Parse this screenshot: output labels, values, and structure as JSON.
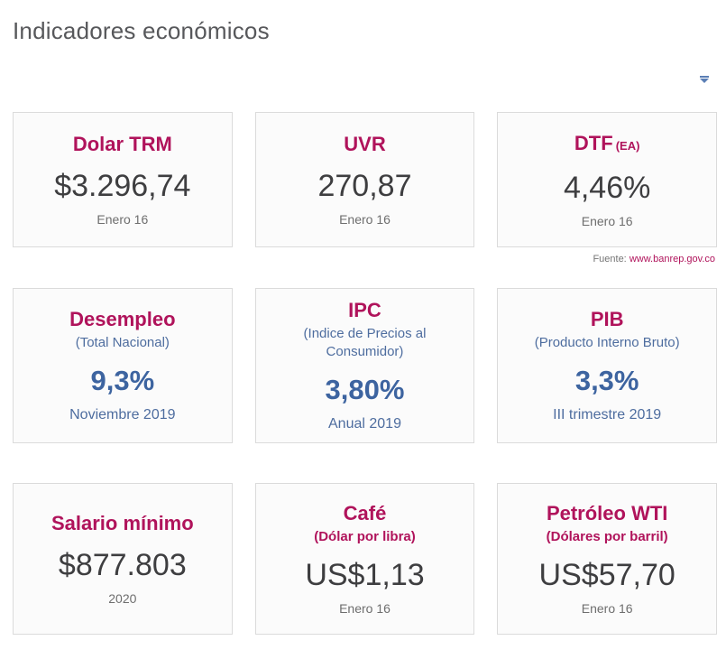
{
  "header": {
    "title": "Indicadores económicos",
    "dropdown_icon": "caret-down"
  },
  "source": {
    "label": "Fuente:",
    "link": "www.banrep.gov.co"
  },
  "colors": {
    "accent_magenta": "#b0135b",
    "accent_blue": "#3d64a0",
    "muted_blue": "#4e6d9f",
    "value_dark": "#3e3e40",
    "period_gray": "#6e6e6e",
    "title_gray": "#57585b",
    "card_bg": "#fbfbfb",
    "card_border": "#dbdbdb"
  },
  "cards": [
    {
      "title": "Dolar TRM",
      "value": "$3.296,74",
      "period": "Enero 16"
    },
    {
      "title": "UVR",
      "value": "270,87",
      "period": "Enero 16"
    },
    {
      "title": "DTF",
      "title_suffix": "(EA)",
      "value": "4,46%",
      "period": "Enero 16"
    },
    {
      "title": "Desempleo",
      "subtitle": "(Total Nacional)",
      "value": "9,3%",
      "period": "Noviembre 2019"
    },
    {
      "title": "IPC",
      "subtitle": "(Indice de Precios al Consumidor)",
      "value": "3,80%",
      "period": "Anual 2019"
    },
    {
      "title": "PIB",
      "subtitle": "(Producto Interno Bruto)",
      "value": "3,3%",
      "period": "III trimestre 2019"
    },
    {
      "title": "Salario mínimo",
      "value": "$877.803",
      "period": "2020"
    },
    {
      "title": "Café",
      "subtitle": "(Dólar por libra)",
      "value": "US$1,13",
      "period": "Enero 16"
    },
    {
      "title": "Petróleo WTI",
      "subtitle": "(Dólares por barril)",
      "value": "US$57,70",
      "period": "Enero 16"
    }
  ]
}
